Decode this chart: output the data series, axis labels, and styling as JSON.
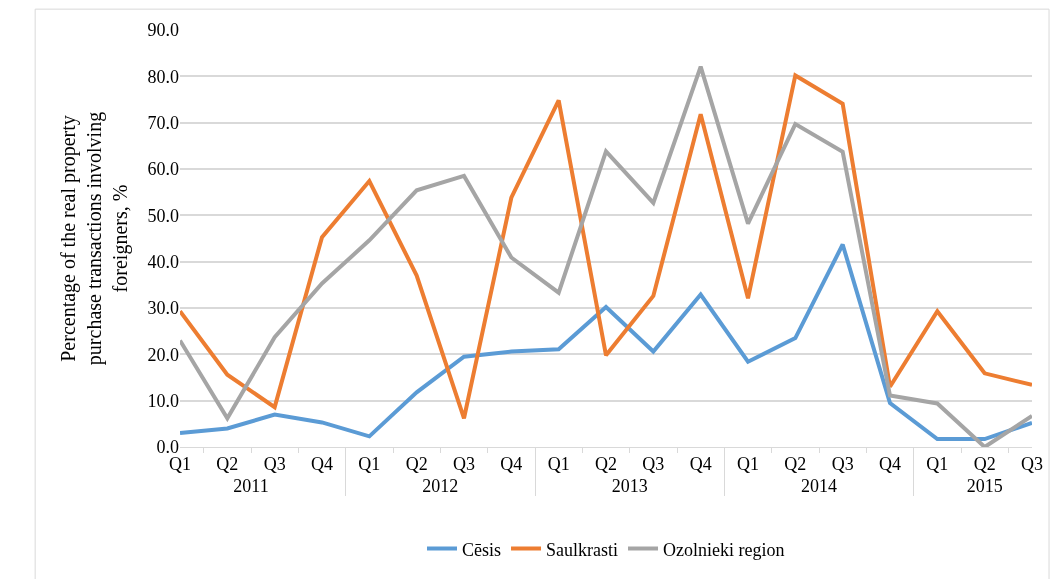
{
  "chart_data": {
    "type": "line",
    "ylabel": "Percentage of the real property purchase transactions involving foreigners, %",
    "categories": [
      "Q1",
      "Q2",
      "Q3",
      "Q4",
      "Q1",
      "Q2",
      "Q3",
      "Q4",
      "Q1",
      "Q2",
      "Q3",
      "Q4",
      "Q1",
      "Q2",
      "Q3",
      "Q4",
      "Q1",
      "Q2",
      "Q3"
    ],
    "annotations": [
      "2011",
      "2012",
      "2013",
      "2014",
      "2015"
    ],
    "series": [
      {
        "name": "Cēsis",
        "color": "#5b9bd5",
        "values": [
          3.0,
          4.0,
          7.0,
          5.3,
          2.3,
          11.8,
          19.5,
          20.6,
          21.1,
          30.2,
          20.6,
          32.9,
          18.4,
          23.5,
          43.7,
          9.5,
          1.7,
          1.7,
          5.2
        ]
      },
      {
        "name": "Saulkrasti",
        "color": "#ed7d31",
        "values": [
          29.3,
          15.6,
          8.6,
          45.3,
          57.4,
          37.0,
          6.2,
          53.8,
          74.8,
          19.8,
          32.6,
          71.8,
          32.1,
          80.2,
          74.1,
          13.0,
          29.3,
          15.9,
          13.4
        ]
      },
      {
        "name": "Ozolnieki region",
        "color": "#a5a5a5",
        "values": [
          23.0,
          6.2,
          23.7,
          35.3,
          44.6,
          55.4,
          58.5,
          40.9,
          33.3,
          63.8,
          52.7,
          82.1,
          48.2,
          69.7,
          63.7,
          11.1,
          9.4,
          0.0,
          6.7
        ]
      }
    ],
    "ylim": [
      0,
      90
    ],
    "yticks": [
      {
        "value": 0,
        "label": "0.0"
      },
      {
        "value": 10,
        "label": "10.0"
      },
      {
        "value": 20,
        "label": "20.0"
      },
      {
        "value": 30,
        "label": "30.0"
      },
      {
        "value": 40,
        "label": "40.0"
      },
      {
        "value": 50,
        "label": "50.0"
      },
      {
        "value": 60,
        "label": "60.0"
      },
      {
        "value": 70,
        "label": "70.0"
      },
      {
        "value": 80,
        "label": "80.0"
      },
      {
        "value": 90,
        "label": "90.0"
      }
    ],
    "grid": "y",
    "legend": "bottom",
    "marker": "none",
    "line_style": "solid"
  }
}
